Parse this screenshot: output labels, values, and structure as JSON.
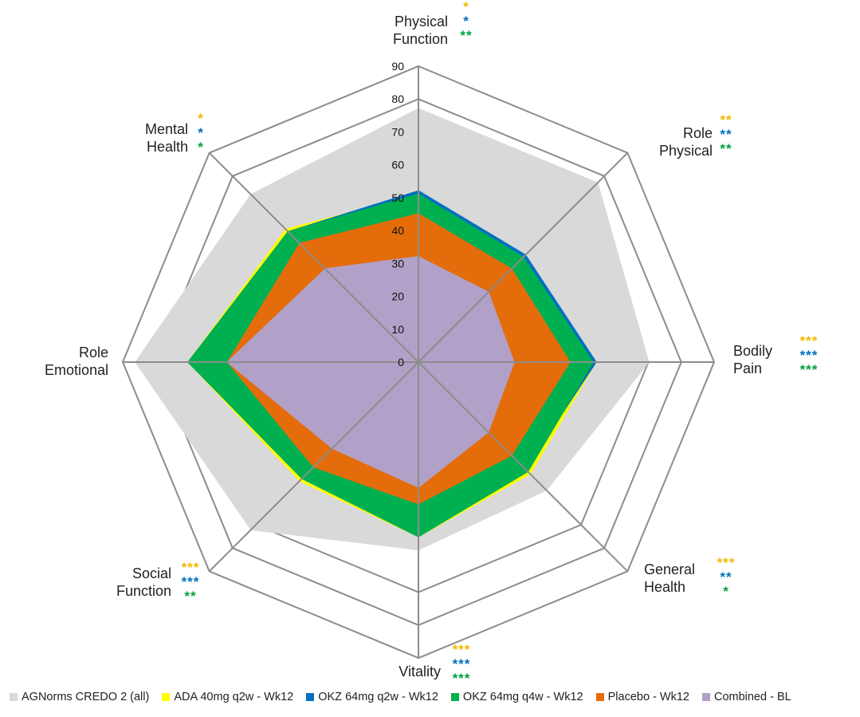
{
  "chart_data": {
    "type": "radar",
    "title": "",
    "axes": [
      "Physical Function",
      "Role Physical",
      "Bodily Pain",
      "General Health",
      "Vitality",
      "Social Function",
      "Role Emotional",
      "Mental Health"
    ],
    "axis_label_lines": [
      [
        "Physical",
        "Function"
      ],
      [
        "Role",
        "Physical"
      ],
      [
        "Bodily",
        "Pain"
      ],
      [
        "General",
        "Health"
      ],
      [
        "Vitality"
      ],
      [
        "Social",
        "Function"
      ],
      [
        "Role",
        "Emotional"
      ],
      [
        "Mental",
        "Health"
      ]
    ],
    "rlim": [
      0,
      90
    ],
    "ticks": [
      0,
      10,
      20,
      30,
      40,
      50,
      60,
      70,
      80,
      90
    ],
    "grid_rings": [
      70,
      80,
      90
    ],
    "series": [
      {
        "name": "AGNorms CREDO 2 (all)",
        "color": "#d9d9d9",
        "values": [
          77,
          77,
          70,
          55,
          57,
          72,
          86,
          72
        ]
      },
      {
        "name": "ADA 40mg q2w - Wk12",
        "color": "#ffff00",
        "values": [
          51,
          45,
          54,
          48,
          53,
          51,
          70,
          57
        ]
      },
      {
        "name": "OKZ 64mg q2w - Wk12",
        "color": "#0070c0",
        "values": [
          52,
          46,
          54,
          46,
          53,
          50,
          70,
          56
        ]
      },
      {
        "name": "OKZ 64mg q4w - Wk12",
        "color": "#00b050",
        "values": [
          51,
          45,
          53,
          47,
          53,
          50,
          70,
          56
        ]
      },
      {
        "name": "Placebo - Wk12",
        "color": "#e46c0a",
        "values": [
          45,
          40,
          46,
          40,
          43,
          45,
          58,
          51
        ]
      },
      {
        "name": "Combined - BL",
        "color": "#b1a0c7",
        "values": [
          32,
          30,
          29,
          30,
          38,
          37,
          58,
          40
        ]
      }
    ],
    "significance": [
      {
        "axis": "Physical Function",
        "marks": [
          "*",
          "*",
          "**"
        ]
      },
      {
        "axis": "Role Physical",
        "marks": [
          "**",
          "**",
          "**"
        ]
      },
      {
        "axis": "Bodily Pain",
        "marks": [
          "***",
          "***",
          "***"
        ]
      },
      {
        "axis": "General Health",
        "marks": [
          "***",
          "**",
          "*"
        ]
      },
      {
        "axis": "Vitality",
        "marks": [
          "***",
          "***",
          "***"
        ]
      },
      {
        "axis": "Social Function",
        "marks": [
          "***",
          "***",
          "**"
        ]
      },
      {
        "axis": "Role Emotional",
        "marks": []
      },
      {
        "axis": "Mental Health",
        "marks": [
          "*",
          "*",
          "*"
        ]
      }
    ],
    "significance_colors": [
      "#f5b800",
      "#0070c0",
      "#00a040"
    ],
    "legend_position": "bottom"
  }
}
